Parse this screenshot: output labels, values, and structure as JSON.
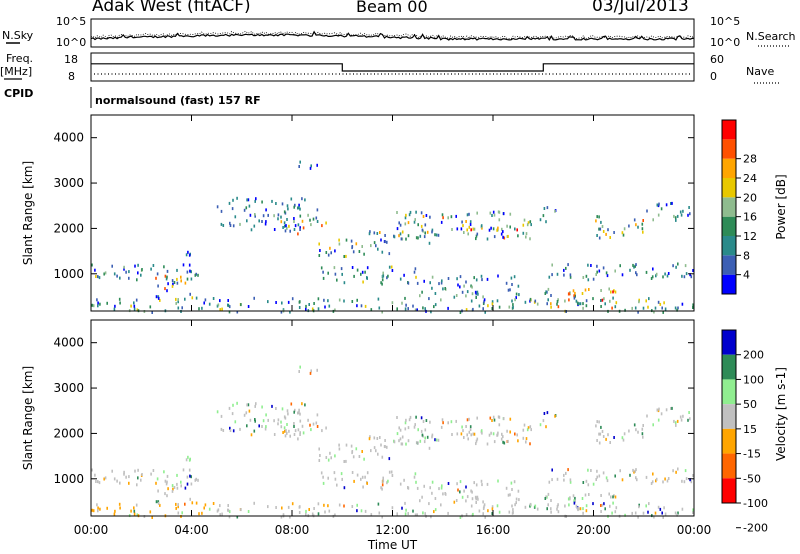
{
  "header": {
    "station": "Adak West (fitACF)",
    "beam": "Beam 00",
    "date": "03/Jul/2013"
  },
  "panels": {
    "nsky": {
      "left_label": "N.Sky",
      "right_label": "N.Search",
      "ticks_left": [
        "10^5",
        "10^0"
      ],
      "ticks_right": [
        "10^5",
        "10^0"
      ]
    },
    "freq": {
      "left_label_1": "Freq.",
      "left_label_2": "[MHz]",
      "right_label": "Nave",
      "ticks_left": [
        "18",
        "8"
      ],
      "ticks_right": [
        "60",
        "0"
      ]
    },
    "cpid": {
      "label": "CPID",
      "text": "normalsound (fast) 157 RF"
    }
  },
  "colors": {
    "power": [
      "#0000ff",
      "#3c5fb4",
      "#2a8a8a",
      "#2e8b57",
      "#8fbc8f",
      "#e8c800",
      "#ffa500",
      "#ff5000",
      "#ff0000"
    ],
    "velocity": [
      "#ff0000",
      "#ff6600",
      "#ffa500",
      "#c0c0c0",
      "#90ee90",
      "#2e8b57",
      "#0000cd"
    ]
  },
  "chart_data": [
    {
      "type": "heatmap",
      "title": "Power",
      "ylabel": "Slant Range [km]",
      "xlabel": "",
      "colorbar_label": "Power [dB]",
      "colorbar_ticks": [
        "4",
        "8",
        "12",
        "16",
        "20",
        "24",
        "28"
      ],
      "x_ticks": [
        "00:00",
        "04:00",
        "08:00",
        "12:00",
        "16:00",
        "20:00",
        "00:00"
      ],
      "y_ticks": [
        "1000",
        "2000",
        "3000",
        "4000"
      ],
      "ylim": [
        180,
        4500
      ],
      "xlim_hours": [
        0,
        24
      ]
    },
    {
      "type": "heatmap",
      "title": "Velocity",
      "ylabel": "Slant Range [km]",
      "xlabel": "Time UT",
      "colorbar_label": "Velocity [m s-1]",
      "colorbar_ticks": [
        "200",
        "100",
        "50",
        "15",
        "-15",
        "-50",
        "-100",
        "-200"
      ],
      "x_ticks": [
        "00:00",
        "04:00",
        "08:00",
        "12:00",
        "16:00",
        "20:00",
        "00:00"
      ],
      "y_ticks": [
        "1000",
        "2000",
        "3000",
        "4000"
      ],
      "ylim": [
        180,
        4500
      ],
      "xlim_hours": [
        0,
        24
      ]
    }
  ],
  "frequency_steps": [
    {
      "from_hour": 0,
      "to_hour": 10,
      "mhz": 14.8
    },
    {
      "from_hour": 10,
      "to_hour": 18,
      "mhz": 10.8
    },
    {
      "from_hour": 18,
      "to_hour": 24,
      "mhz": 14.8
    }
  ]
}
